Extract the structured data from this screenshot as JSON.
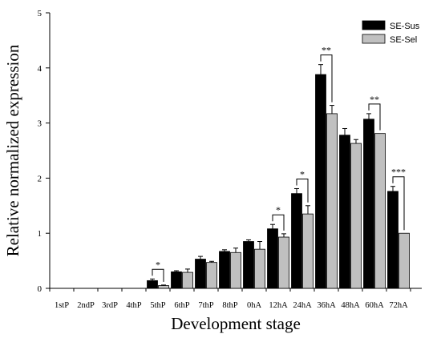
{
  "chart_data": {
    "type": "bar",
    "xlabel": "Development stage",
    "ylabel": "Relative normalized expression",
    "ylim": [
      0,
      5
    ],
    "yticks": [
      0,
      1,
      2,
      3,
      4,
      5
    ],
    "categories": [
      "1stP",
      "2ndP",
      "3rdP",
      "4thP",
      "5thP",
      "6thP",
      "7thP",
      "8thP",
      "0hA",
      "12hA",
      "24hA",
      "36hA",
      "48hA",
      "60hA",
      "72hA"
    ],
    "legend_position": "top-right",
    "series": [
      {
        "name": "SE-Sus",
        "color": "#000000",
        "values": [
          0,
          0,
          0,
          0,
          0.14,
          0.3,
          0.53,
          0.67,
          0.85,
          1.08,
          1.72,
          3.88,
          2.78,
          3.07,
          1.76
        ],
        "errors": [
          0,
          0,
          0,
          0,
          0.03,
          0.02,
          0.05,
          0.03,
          0.03,
          0.08,
          0.09,
          0.18,
          0.12,
          0.1,
          0.09
        ]
      },
      {
        "name": "SE-Sel",
        "color": "#c0c0c0",
        "values": [
          0,
          0,
          0,
          0,
          0.05,
          0.29,
          0.47,
          0.65,
          0.71,
          0.93,
          1.35,
          3.17,
          2.63,
          2.81,
          1.0
        ],
        "errors": [
          0,
          0,
          0,
          0,
          0.01,
          0.06,
          0.02,
          0.08,
          0.14,
          0.06,
          0.15,
          0.15,
          0.07,
          0.0,
          0.0
        ]
      }
    ],
    "significance": [
      {
        "category": "5thP",
        "label": "*"
      },
      {
        "category": "12hA",
        "label": "*"
      },
      {
        "category": "24hA",
        "label": "*"
      },
      {
        "category": "36hA",
        "label": "**"
      },
      {
        "category": "60hA",
        "label": "**"
      },
      {
        "category": "72hA",
        "label": "***"
      }
    ]
  }
}
